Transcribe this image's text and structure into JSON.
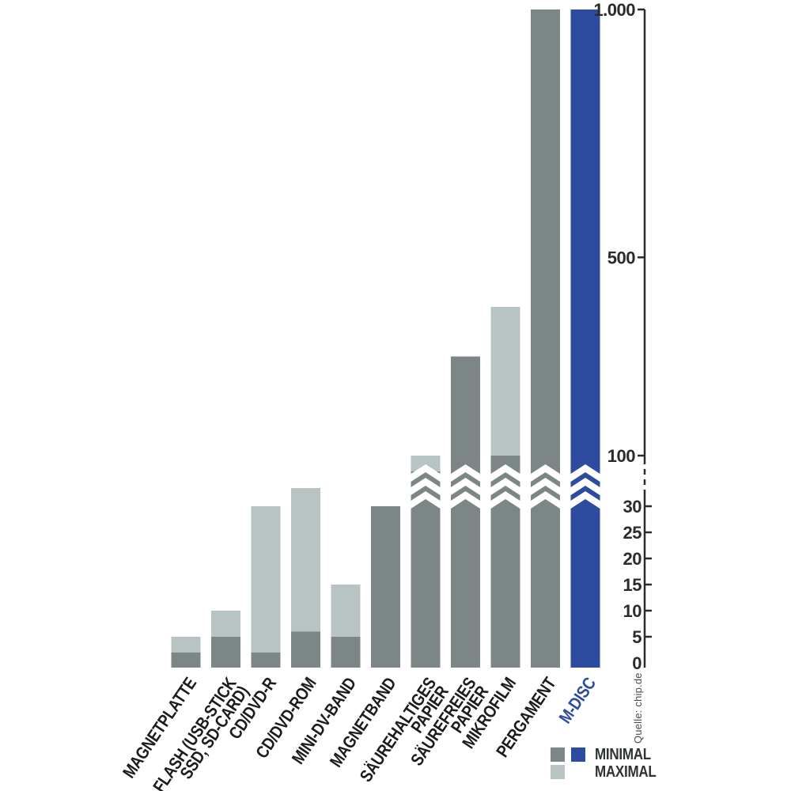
{
  "chart_data": {
    "type": "bar",
    "subtype": "stacked-range-min-max",
    "title": "",
    "xlabel": "",
    "ylabel": "",
    "categories": [
      {
        "label": "MAGNETPLATTE",
        "lines": [
          "MAGNETPLATTE"
        ],
        "min": 2,
        "max": 5,
        "color": "gray"
      },
      {
        "label": "FLASH (USB-STICK SSD, SD-CARD)",
        "lines": [
          "FLASH (USB-STICK",
          "SSD, SD-CARD)"
        ],
        "min": 5,
        "max": 10,
        "color": "gray"
      },
      {
        "label": "CD/DVD-R",
        "lines": [
          "CD/DVD-R"
        ],
        "min": 2,
        "max": 30,
        "color": "gray"
      },
      {
        "label": "CD/DVD-ROM",
        "lines": [
          "CD/DVD-ROM"
        ],
        "min": 6,
        "max": 35,
        "color": "gray"
      },
      {
        "label": "MINI-DV-BAND",
        "lines": [
          "MINI-DV-BAND"
        ],
        "min": 5,
        "max": 15,
        "color": "gray"
      },
      {
        "label": "MAGNETBAND",
        "lines": [
          "MAGNETBAND"
        ],
        "min": 30,
        "max": 30,
        "color": "gray"
      },
      {
        "label": "SÄUREHALTIGES PAPIER",
        "lines": [
          "SÄUREHALTIGES",
          "PAPIER"
        ],
        "min": 50,
        "max": 100,
        "color": "gray"
      },
      {
        "label": "SÄUREFREIES PAPIER",
        "lines": [
          "SÄUREFREIES",
          "PAPIER"
        ],
        "min": 300,
        "max": 300,
        "color": "gray"
      },
      {
        "label": "MIKROFILM",
        "lines": [
          "MIKROFILM"
        ],
        "min": 100,
        "max": 400,
        "color": "gray"
      },
      {
        "label": "PERGAMENT",
        "lines": [
          "PERGAMENT"
        ],
        "min": 1000,
        "max": 1000,
        "color": "gray"
      },
      {
        "label": "M-DISC",
        "lines": [
          "M-DISC"
        ],
        "min": 1000,
        "max": 1000,
        "color": "blue"
      }
    ],
    "series_note": "dark/blue segment = MINIMAL lifespan, light segment = MAXIMAL lifespan",
    "y_axis": {
      "lower_ticks": [
        "0",
        "5",
        "10",
        "15",
        "20",
        "25",
        "30"
      ],
      "upper_ticks": [
        "100",
        "500",
        "1.000"
      ],
      "axis_break": true,
      "break_between": [
        35,
        100
      ],
      "grid": false
    },
    "legend": {
      "position": "bottom-right",
      "minimal_label": "MINIMAL",
      "maximal_label": "MAXIMAL"
    },
    "source": "Quelle: chip.de",
    "palette": {
      "minimal_gray": "#7d8687",
      "maximal_gray": "#b8c4c4",
      "mdisc_blue": "#2d4ca0",
      "axis": "#2b2b2b",
      "label_text": "#1c1c1c"
    }
  }
}
